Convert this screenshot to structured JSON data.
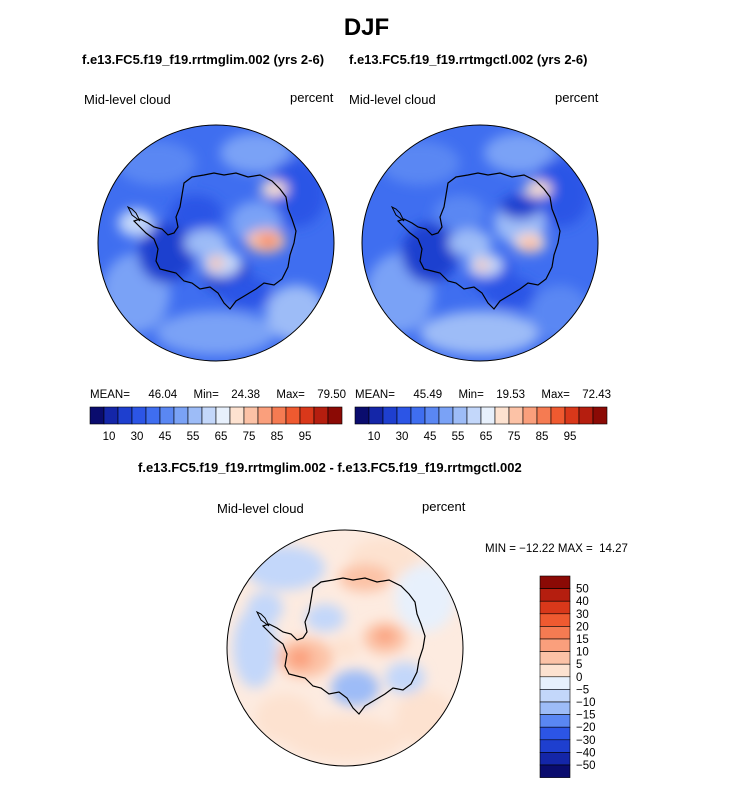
{
  "figure": {
    "season": "DJF"
  },
  "panel_left": {
    "title": "f.e13.FC5.f19_f19.rrtmglim.002 (yrs 2-6)",
    "variable": "Mid-level cloud",
    "units": "percent",
    "mean_label": "MEAN=",
    "mean": "46.04",
    "min_label": "Min=",
    "min": "24.38",
    "max_label": "Max=",
    "max": "79.50"
  },
  "panel_right": {
    "title": "f.e13.FC5.f19_f19.rrtmgctl.002 (yrs 2-6)",
    "variable": "Mid-level cloud",
    "units": "percent",
    "mean_label": "MEAN=",
    "mean": "45.49",
    "min_label": "Min=",
    "min": "19.53",
    "max_label": "Max=",
    "max": "72.43"
  },
  "panel_diff": {
    "title": "f.e13.FC5.f19_f19.rrtmglim.002 - f.e13.FC5.f19_f19.rrtmgctl.002",
    "variable": "Mid-level cloud",
    "units": "percent",
    "minmax_text": "MIN = −12.22 MAX =  14.27"
  },
  "chart_data": [
    {
      "type": "heatmap",
      "projection": "south-polar-stereographic",
      "title": "f.e13.FC5.f19_f19.rrtmglim.002 (yrs 2-6)",
      "variable": "Mid-level cloud",
      "units": "percent",
      "mean": 46.04,
      "min": 24.38,
      "max": 79.5,
      "colorbar": {
        "orientation": "horizontal",
        "levels": [
          10,
          15,
          20,
          25,
          30,
          35,
          40,
          45,
          50,
          55,
          60,
          65,
          70,
          75,
          80,
          85,
          90,
          95
        ],
        "tick_labels": [
          "10",
          "30",
          "45",
          "55",
          "65",
          "75",
          "85",
          "95"
        ],
        "colors": [
          "#0a0c6e",
          "#1426a8",
          "#1e3fcf",
          "#2c55e6",
          "#3f6ef0",
          "#5a87f3",
          "#7aa2f6",
          "#9dbcf7",
          "#c3d7fa",
          "#e7f0fc",
          "#fde2d0",
          "#fcc2a6",
          "#fa9f7c",
          "#f57b52",
          "#ef5a30",
          "#d9381a",
          "#b51e0f",
          "#8b0a05"
        ]
      }
    },
    {
      "type": "heatmap",
      "projection": "south-polar-stereographic",
      "title": "f.e13.FC5.f19_f19.rrtmgctl.002 (yrs 2-6)",
      "variable": "Mid-level cloud",
      "units": "percent",
      "mean": 45.49,
      "min": 19.53,
      "max": 72.43,
      "colorbar": {
        "orientation": "horizontal",
        "levels": [
          10,
          15,
          20,
          25,
          30,
          35,
          40,
          45,
          50,
          55,
          60,
          65,
          70,
          75,
          80,
          85,
          90,
          95
        ],
        "tick_labels": [
          "10",
          "30",
          "45",
          "55",
          "65",
          "75",
          "85",
          "95"
        ],
        "colors": [
          "#0a0c6e",
          "#1426a8",
          "#1e3fcf",
          "#2c55e6",
          "#3f6ef0",
          "#5a87f3",
          "#7aa2f6",
          "#9dbcf7",
          "#c3d7fa",
          "#e7f0fc",
          "#fde2d0",
          "#fcc2a6",
          "#fa9f7c",
          "#f57b52",
          "#ef5a30",
          "#d9381a",
          "#b51e0f",
          "#8b0a05"
        ]
      }
    },
    {
      "type": "heatmap",
      "projection": "south-polar-stereographic",
      "title": "f.e13.FC5.f19_f19.rrtmglim.002 - f.e13.FC5.f19_f19.rrtmgctl.002",
      "variable": "Mid-level cloud",
      "units": "percent",
      "min": -12.22,
      "max": 14.27,
      "colorbar": {
        "orientation": "vertical",
        "tick_labels": [
          "50",
          "40",
          "30",
          "20",
          "15",
          "10",
          "5",
          "0",
          "−5",
          "−10",
          "−15",
          "−20",
          "−30",
          "−40",
          "−50"
        ],
        "colors": [
          "#8b0a05",
          "#b51e0f",
          "#d9381a",
          "#ef5a30",
          "#f57b52",
          "#fa9f7c",
          "#fcc2a6",
          "#fde2d0",
          "#e7f0fc",
          "#c3d7fa",
          "#9dbcf7",
          "#5a87f3",
          "#2c55e6",
          "#1e3fcf",
          "#1426a8",
          "#0a0c6e"
        ]
      }
    }
  ]
}
